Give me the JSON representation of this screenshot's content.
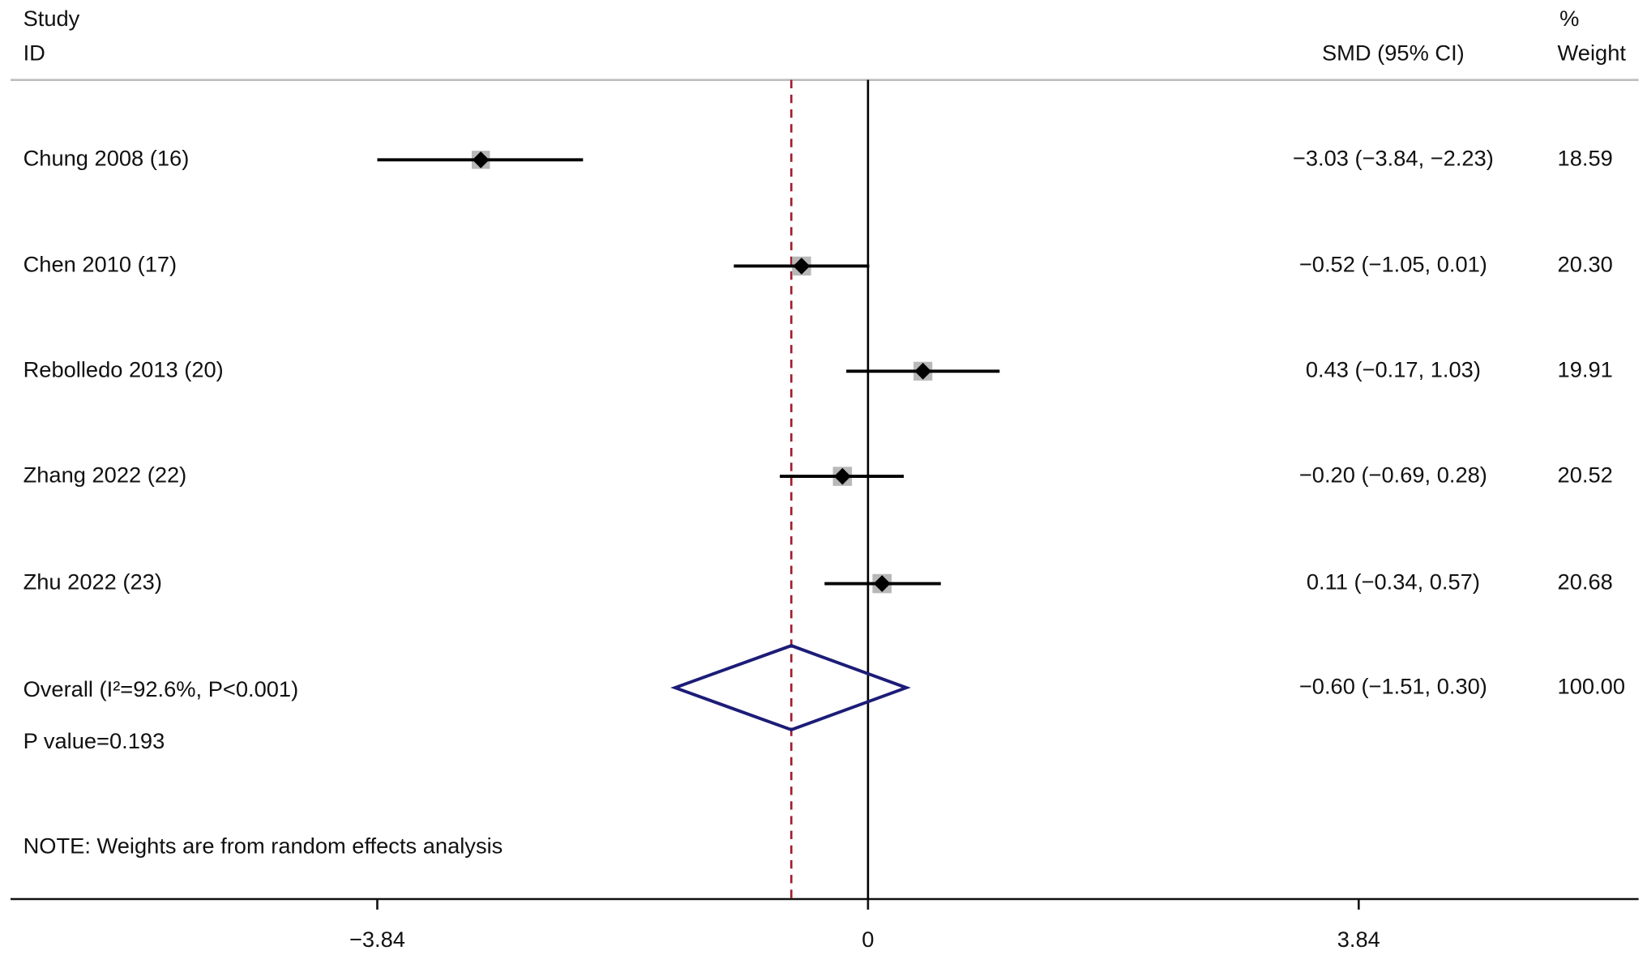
{
  "chart_data": {
    "type": "forest",
    "header": {
      "study": "Study",
      "id": "ID",
      "effect": "SMD (95% CI)",
      "pct": "%",
      "weight": "Weight"
    },
    "categories": [
      "Chung 2008 (16)",
      "Chen 2010 (17)",
      "Rebolledo 2013 (20)",
      "Zhang 2022 (22)",
      "Zhu 2022 (23)"
    ],
    "smd": {
      "values": [
        -3.03,
        -0.52,
        0.43,
        -0.2,
        0.11
      ],
      "value_labels": [
        "−3.03 (−3.84, −2.23)",
        "−0.52 (−1.05, 0.01)",
        "0.43 (−0.17, 1.03)",
        "−0.20 (−0.69, 0.28)",
        "0.11 (−0.34, 0.57)"
      ]
    },
    "lower": [
      -3.84,
      -1.05,
      -0.17,
      -0.69,
      -0.34
    ],
    "upper": [
      -2.23,
      0.01,
      1.03,
      0.28,
      0.57
    ],
    "weight": {
      "values": [
        18.59,
        20.3,
        19.91,
        20.52,
        20.68
      ],
      "value_labels": [
        "18.59",
        "20.30",
        "19.91",
        "20.52",
        "20.68"
      ]
    },
    "overall": {
      "label": "Overall (I²=92.6%, P<0.001)",
      "value": -0.6,
      "lower": -1.51,
      "upper": 0.3,
      "value_label": "−0.60 (−1.51, 0.30)",
      "weight": 100,
      "weight_label": "100.00"
    },
    "p_value": "P value=0.193",
    "note": "NOTE: Weights are from random effects analysis",
    "xlim": [
      -6.71,
      6.03
    ],
    "xticks": [
      {
        "value": -3.84,
        "label": "−3.84"
      },
      0,
      3.84
    ],
    "colors": {
      "line": "#000000",
      "box": "#b8b8b8",
      "diamond": "#1c1c78",
      "reference": "#a01c2c"
    }
  }
}
